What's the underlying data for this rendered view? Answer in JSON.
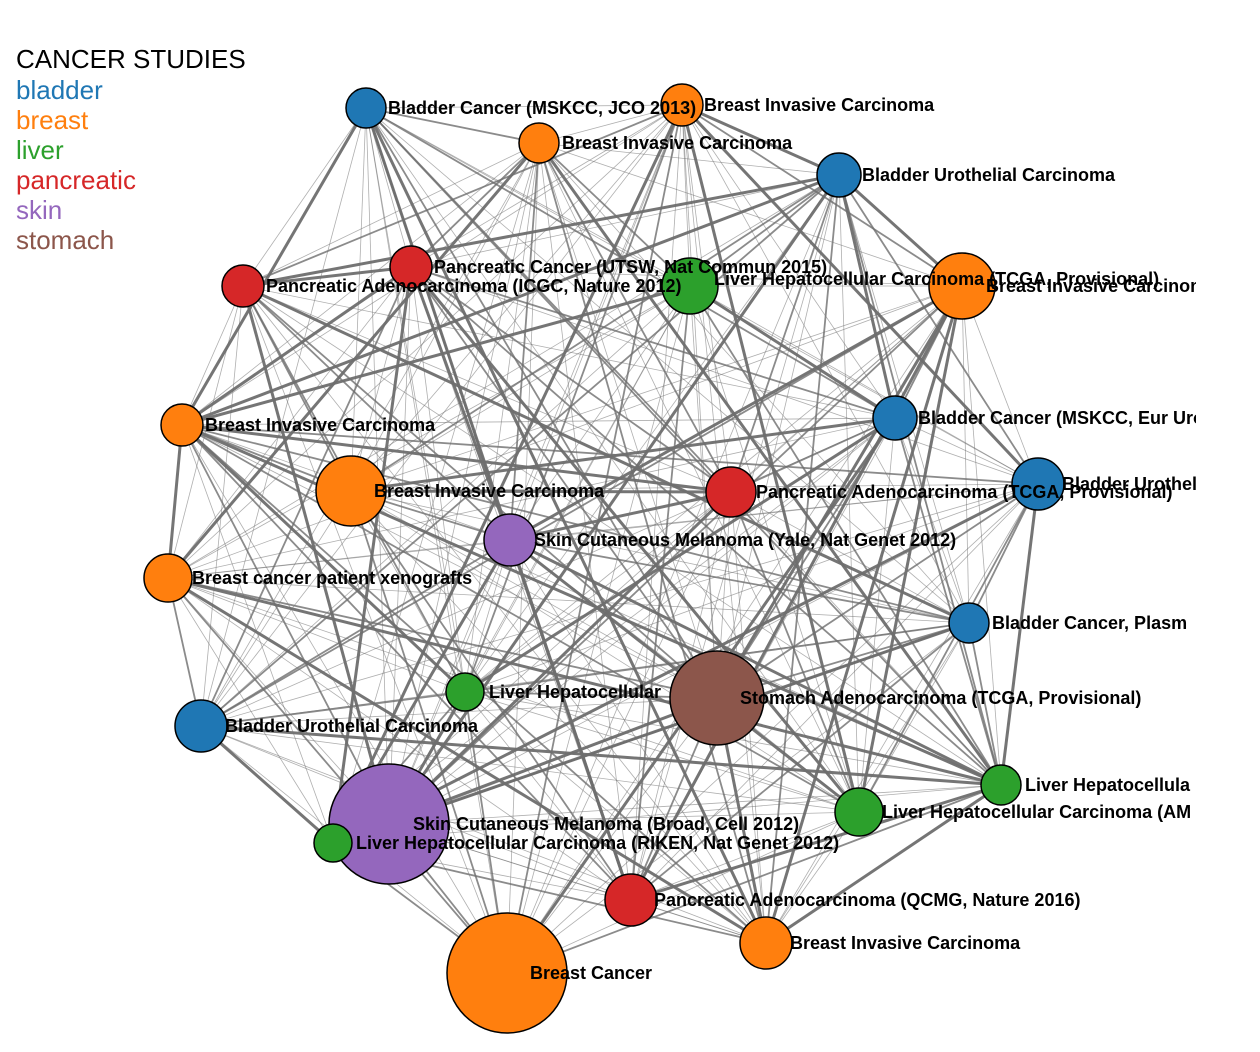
{
  "legend": {
    "title": "CANCER STUDIES",
    "categories": [
      {
        "name": "bladder",
        "color": "#1f77b4"
      },
      {
        "name": "breast",
        "color": "#ff7f0e"
      },
      {
        "name": "liver",
        "color": "#2ca02c"
      },
      {
        "name": "pancreatic",
        "color": "#d62728"
      },
      {
        "name": "skin",
        "color": "#9467bd"
      },
      {
        "name": "stomach",
        "color": "#8c564b"
      }
    ]
  },
  "nodes": [
    {
      "label": "Bladder Cancer (MSKCC, JCO 2013)",
      "category": "bladder"
    },
    {
      "label": "Breast Invasive Carcinoma",
      "category": "breast"
    },
    {
      "label": "Breast Invasive Carcinoma",
      "category": "breast"
    },
    {
      "label": "Bladder Urothelial Carcinoma",
      "category": "bladder"
    },
    {
      "label": "Pancreatic Cancer (UTSW, Nat Commun 2015)",
      "category": "pancreatic"
    },
    {
      "label": "Liver Hepatocellular Carcinoma (TCGA, Provisional)",
      "category": "liver"
    },
    {
      "label": "Pancreatic Adenocarcinoma (ICGC, Nature 2012)",
      "category": "pancreatic"
    },
    {
      "label": "Breast Invasive Carcinoma",
      "category": "breast"
    },
    {
      "label": "Breast Invasive Carcinoma",
      "category": "breast"
    },
    {
      "label": "Bladder Cancer (MSKCC, Eur Urol)",
      "category": "bladder"
    },
    {
      "label": "Bladder Urothelial",
      "category": "bladder"
    },
    {
      "label": "Breast Invasive Carcinoma",
      "category": "breast"
    },
    {
      "label": "Pancreatic Adenocarcinoma (TCGA, Provisional)",
      "category": "pancreatic"
    },
    {
      "label": "Skin Cutaneous Melanoma (Yale, Nat Genet 2012)",
      "category": "skin"
    },
    {
      "label": "Breast cancer patient xenografts",
      "category": "breast"
    },
    {
      "label": "Bladder Cancer, Plasm",
      "category": "bladder"
    },
    {
      "label": "Liver Hepatocellular",
      "category": "liver"
    },
    {
      "label": "Stomach Adenocarcinoma (TCGA, Provisional)",
      "category": "stomach"
    },
    {
      "label": "Bladder Urothelial Carcinoma",
      "category": "bladder"
    },
    {
      "label": "Liver Hepatocellula",
      "category": "liver"
    },
    {
      "label": "Liver Hepatocellular Carcinoma (AM",
      "category": "liver"
    },
    {
      "label": "Skin Cutaneous Melanoma (Broad, Cell 2012)",
      "category": "skin"
    },
    {
      "label": "Liver Hepatocellular Carcinoma (RIKEN, Nat Genet 2012)",
      "category": "liver"
    },
    {
      "label": "Pancreatic Adenocarcinoma (QCMG, Nature 2016)",
      "category": "pancreatic"
    },
    {
      "label": "Breast Invasive Carcinoma",
      "category": "breast"
    },
    {
      "label": "Breast Cancer",
      "category": "breast"
    }
  ]
}
